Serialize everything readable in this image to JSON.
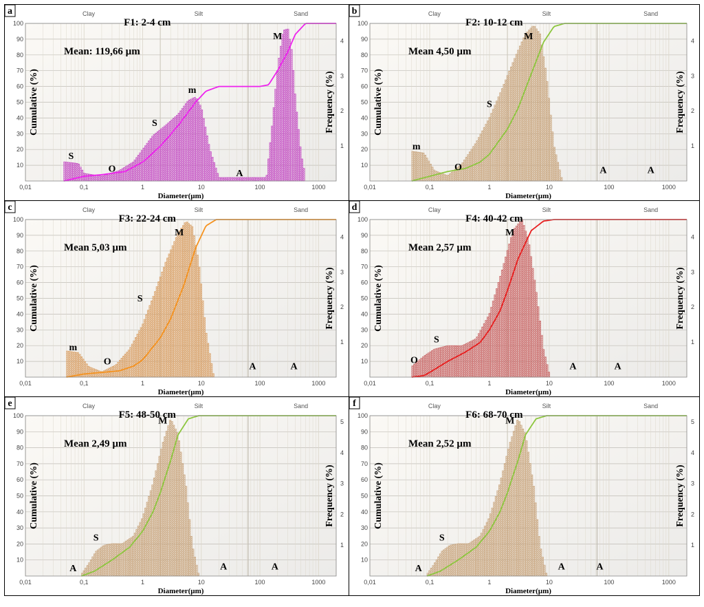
{
  "zones": [
    "Clay",
    "Silt",
    "Sand"
  ],
  "chart_data": [
    {
      "type": "area",
      "letter": "a",
      "title": "F1: 2-4 cm",
      "mean_label": "Mean: 119,66 µm",
      "xlabel": "Diameter(µm)",
      "ylabel_left": "Cumulative (%)",
      "ylabel_right": "Frequency (%)",
      "x_scale": "log",
      "xlim": [
        0.01,
        2000
      ],
      "x_ticks": [
        "0,01",
        "0,1",
        "1",
        "10",
        "100",
        "1000"
      ],
      "y_left_lim": [
        0,
        100
      ],
      "y_left_ticks": [
        "10",
        "20",
        "30",
        "40",
        "50",
        "60",
        "70",
        "80",
        "90",
        "100"
      ],
      "y_right_lim": [
        0,
        4.5
      ],
      "y_right_ticks": [
        "1",
        "2",
        "3",
        "4"
      ],
      "hist_color": "#c44fc4",
      "curve_color": "#ee22ee",
      "frequency": {
        "x": [
          0.045,
          0.08,
          0.1,
          0.2,
          0.4,
          0.7,
          1.0,
          1.5,
          2.5,
          4,
          6,
          8,
          10,
          14,
          20,
          130,
          160,
          200,
          250,
          300,
          350,
          400,
          500,
          600
        ],
        "y": [
          0.55,
          0.5,
          0.22,
          0.14,
          0.3,
          0.55,
          0.9,
          1.3,
          1.6,
          1.9,
          2.3,
          2.4,
          2.1,
          0.9,
          0.1,
          0.1,
          1.5,
          3.2,
          4.3,
          4.35,
          3.7,
          2.4,
          0.8,
          0.1
        ]
      },
      "cumulative": {
        "x": [
          0.045,
          0.1,
          0.2,
          0.5,
          1,
          2,
          4,
          8,
          12,
          20,
          50,
          100,
          140,
          200,
          300,
          400,
          600,
          900,
          2000
        ],
        "y": [
          0,
          3,
          4,
          6,
          12,
          22,
          35,
          50,
          57,
          60,
          60,
          60,
          61,
          70,
          82,
          93,
          100,
          100,
          100
        ]
      },
      "annotations": [
        {
          "text": "S",
          "x": 0.06,
          "y": 14
        },
        {
          "text": "O",
          "x": 0.3,
          "y": 6
        },
        {
          "text": "S",
          "x": 1.6,
          "y": 35
        },
        {
          "text": "m",
          "x": 7,
          "y": 56
        },
        {
          "text": "A",
          "x": 45,
          "y": 3
        },
        {
          "text": "M",
          "x": 200,
          "y": 90
        }
      ]
    },
    {
      "type": "area",
      "letter": "b",
      "title": "F2: 10-12 cm",
      "mean_label": "Mean 4,50 µm",
      "xlabel": "Diameter(µm)",
      "ylabel_left": "Cumulative (%)",
      "ylabel_right": "Frequency (%)",
      "x_scale": "log",
      "xlim": [
        0.01,
        2000
      ],
      "x_ticks": [
        "0,01",
        "0,1",
        "1",
        "10",
        "100",
        "1000"
      ],
      "y_left_lim": [
        0,
        100
      ],
      "y_left_ticks": [
        "10",
        "20",
        "30",
        "40",
        "50",
        "60",
        "70",
        "80",
        "90",
        "100"
      ],
      "y_right_lim": [
        0,
        4.5
      ],
      "y_right_ticks": [
        "1",
        "2",
        "3",
        "4"
      ],
      "hist_color": "#c9a57e",
      "curve_color": "#8cc63e",
      "frequency": {
        "x": [
          0.05,
          0.08,
          0.12,
          0.2,
          0.35,
          0.6,
          1.0,
          1.6,
          2.5,
          4,
          5.5,
          7,
          9,
          12,
          16
        ],
        "y": [
          0.85,
          0.8,
          0.3,
          0.15,
          0.5,
          1.1,
          1.8,
          2.6,
          3.4,
          4.2,
          4.45,
          4.2,
          3.0,
          1.0,
          0.1
        ]
      },
      "cumulative": {
        "x": [
          0.05,
          0.1,
          0.2,
          0.4,
          0.7,
          1,
          2,
          3,
          5,
          8,
          12,
          18,
          100,
          2000
        ],
        "y": [
          0,
          3,
          6,
          8,
          12,
          17,
          33,
          46,
          68,
          88,
          98,
          100,
          100,
          100
        ]
      },
      "annotations": [
        {
          "text": "m",
          "x": 0.06,
          "y": 20
        },
        {
          "text": "O",
          "x": 0.3,
          "y": 7
        },
        {
          "text": "S",
          "x": 1.0,
          "y": 47
        },
        {
          "text": "M",
          "x": 4.5,
          "y": 90
        },
        {
          "text": "A",
          "x": 80,
          "y": 5
        },
        {
          "text": "A",
          "x": 500,
          "y": 5
        }
      ]
    },
    {
      "type": "area",
      "letter": "c",
      "title": "F3: 22-24 cm",
      "mean_label": "Mean 5,03 µm",
      "xlabel": "Diameter(µm)",
      "ylabel_left": "Cumulative (%)",
      "ylabel_right": "Frequency (%)",
      "x_scale": "log",
      "xlim": [
        0.01,
        2000
      ],
      "x_ticks": [
        "0,01",
        "0,1",
        "1",
        "10",
        "100",
        "1000"
      ],
      "y_left_lim": [
        0,
        100
      ],
      "y_left_ticks": [
        "10",
        "20",
        "30",
        "40",
        "50",
        "60",
        "70",
        "80",
        "90",
        "100"
      ],
      "y_right_lim": [
        0,
        4.5
      ],
      "y_right_ticks": [
        "1",
        "2",
        "3",
        "4"
      ],
      "hist_color": "#d9a066",
      "curve_color": "#f5921e",
      "frequency": {
        "x": [
          0.05,
          0.08,
          0.12,
          0.2,
          0.35,
          0.6,
          1.0,
          1.6,
          2.5,
          4,
          5.5,
          7,
          9,
          12,
          16
        ],
        "y": [
          0.75,
          0.7,
          0.3,
          0.15,
          0.35,
          0.8,
          1.5,
          2.4,
          3.3,
          4.1,
          4.45,
          4.3,
          3.3,
          1.3,
          0.1
        ]
      },
      "cumulative": {
        "x": [
          0.05,
          0.1,
          0.2,
          0.4,
          0.7,
          1,
          2,
          3,
          5,
          8,
          12,
          18,
          100,
          2000
        ],
        "y": [
          0,
          2,
          3,
          4,
          7,
          11,
          25,
          37,
          58,
          82,
          96,
          100,
          100,
          100
        ]
      },
      "annotations": [
        {
          "text": "m",
          "x": 0.065,
          "y": 17
        },
        {
          "text": "O",
          "x": 0.25,
          "y": 8
        },
        {
          "text": "S",
          "x": 0.9,
          "y": 48
        },
        {
          "text": "M",
          "x": 4.2,
          "y": 90
        },
        {
          "text": "A",
          "x": 75,
          "y": 5
        },
        {
          "text": "A",
          "x": 380,
          "y": 5
        }
      ]
    },
    {
      "type": "area",
      "letter": "d",
      "title": "F4: 40-42 cm",
      "mean_label": "Mean 2,57 µm",
      "xlabel": "Diameter(µm)",
      "ylabel_left": "Cumulative (%)",
      "ylabel_right": "Frequency (%)",
      "x_scale": "log",
      "xlim": [
        0.01,
        2000
      ],
      "x_ticks": [
        "0,01",
        "0,1",
        "1",
        "10",
        "100",
        "1000"
      ],
      "y_left_lim": [
        0,
        100
      ],
      "y_left_ticks": [
        "10",
        "20",
        "30",
        "40",
        "50",
        "60",
        "70",
        "80",
        "90",
        "100"
      ],
      "y_right_lim": [
        0,
        4.5
      ],
      "y_right_ticks": [
        "1",
        "2",
        "3",
        "4"
      ],
      "hist_color": "#c96666",
      "curve_color": "#e81e1e",
      "frequency": {
        "x": [
          0.05,
          0.08,
          0.12,
          0.2,
          0.35,
          0.6,
          1.0,
          1.6,
          2.5,
          3.5,
          4.5,
          6,
          8,
          10
        ],
        "y": [
          0.3,
          0.6,
          0.8,
          0.9,
          0.9,
          1.1,
          1.8,
          3.0,
          4.2,
          4.5,
          3.9,
          2.5,
          0.8,
          0.1
        ]
      },
      "cumulative": {
        "x": [
          0.05,
          0.08,
          0.1,
          0.2,
          0.4,
          0.7,
          1,
          1.5,
          2,
          3,
          5,
          8,
          12,
          100,
          2000
        ],
        "y": [
          0,
          1,
          3,
          10,
          16,
          22,
          30,
          42,
          55,
          75,
          93,
          99,
          100,
          100,
          100
        ]
      },
      "annotations": [
        {
          "text": "O",
          "x": 0.055,
          "y": 9
        },
        {
          "text": "S",
          "x": 0.13,
          "y": 22
        },
        {
          "text": "M",
          "x": 2.2,
          "y": 90
        },
        {
          "text": "A",
          "x": 25,
          "y": 5
        },
        {
          "text": "A",
          "x": 140,
          "y": 5
        }
      ]
    },
    {
      "type": "area",
      "letter": "e",
      "title": "F5: 48-50 cm",
      "mean_label": "Mean 2,49 µm",
      "xlabel": "Diameter(µm)",
      "ylabel_left": "Cumulative (%)",
      "ylabel_right": "Frequency (%)",
      "x_scale": "log",
      "xlim": [
        0.01,
        2000
      ],
      "x_ticks": [
        "0,01",
        "0,1",
        "1",
        "10",
        "100",
        "1000"
      ],
      "y_left_lim": [
        0,
        100
      ],
      "y_left_ticks": [
        "10",
        "20",
        "30",
        "40",
        "50",
        "60",
        "70",
        "80",
        "90",
        "100"
      ],
      "y_right_lim": [
        0,
        5.2
      ],
      "y_right_ticks": [
        "1",
        "2",
        "3",
        "4",
        "5"
      ],
      "hist_color": "#c9a57e",
      "curve_color": "#8cc63e",
      "frequency": {
        "x": [
          0.09,
          0.12,
          0.16,
          0.22,
          0.3,
          0.45,
          0.7,
          1.0,
          1.5,
          2.2,
          3.0,
          4.0,
          5.5,
          7,
          9
        ],
        "y": [
          0.05,
          0.4,
          0.8,
          1.0,
          1.05,
          1.05,
          1.3,
          1.9,
          3.0,
          4.3,
          5.1,
          4.6,
          2.9,
          1.0,
          0.05
        ]
      },
      "cumulative": {
        "x": [
          0.09,
          0.15,
          0.3,
          0.6,
          1,
          1.5,
          2,
          3,
          4,
          6,
          9,
          100,
          2000
        ],
        "y": [
          0,
          3,
          10,
          18,
          28,
          40,
          52,
          72,
          88,
          98,
          100,
          100,
          100
        ]
      },
      "annotations": [
        {
          "text": "A",
          "x": 0.065,
          "y": 3
        },
        {
          "text": "S",
          "x": 0.16,
          "y": 22
        },
        {
          "text": "M",
          "x": 2.2,
          "y": 95
        },
        {
          "text": "A",
          "x": 24,
          "y": 4
        },
        {
          "text": "A",
          "x": 180,
          "y": 4
        }
      ]
    },
    {
      "type": "area",
      "letter": "f",
      "title": "F6: 68-70 cm",
      "mean_label": "Mean 2,52 µm",
      "xlabel": "Diameter(µm)",
      "ylabel_left": "Cumulative (%)",
      "ylabel_right": "Frequency (%)",
      "x_scale": "log",
      "xlim": [
        0.01,
        2000
      ],
      "x_ticks": [
        "0,01",
        "0,1",
        "1",
        "10",
        "100",
        "1000"
      ],
      "y_left_lim": [
        0,
        100
      ],
      "y_left_ticks": [
        "10",
        "20",
        "30",
        "40",
        "50",
        "60",
        "70",
        "80",
        "90",
        "100"
      ],
      "y_right_lim": [
        0,
        5.2
      ],
      "y_right_ticks": [
        "1",
        "2",
        "3",
        "4",
        "5"
      ],
      "hist_color": "#c9a57e",
      "curve_color": "#8cc63e",
      "frequency": {
        "x": [
          0.09,
          0.12,
          0.16,
          0.22,
          0.3,
          0.45,
          0.7,
          1.0,
          1.5,
          2.2,
          3.0,
          4.0,
          5.5,
          7,
          9
        ],
        "y": [
          0.05,
          0.4,
          0.8,
          1.0,
          1.05,
          1.05,
          1.3,
          1.9,
          3.0,
          4.3,
          5.1,
          4.6,
          2.9,
          1.0,
          0.05
        ]
      },
      "cumulative": {
        "x": [
          0.09,
          0.15,
          0.3,
          0.6,
          1,
          1.5,
          2,
          3,
          4,
          6,
          9,
          100,
          2000
        ],
        "y": [
          0,
          3,
          10,
          18,
          28,
          40,
          52,
          72,
          88,
          98,
          100,
          100,
          100
        ]
      },
      "annotations": [
        {
          "text": "A",
          "x": 0.065,
          "y": 3
        },
        {
          "text": "S",
          "x": 0.16,
          "y": 22
        },
        {
          "text": "M",
          "x": 2.2,
          "y": 95
        },
        {
          "text": "A",
          "x": 16,
          "y": 4
        },
        {
          "text": "A",
          "x": 70,
          "y": 4
        }
      ]
    }
  ]
}
